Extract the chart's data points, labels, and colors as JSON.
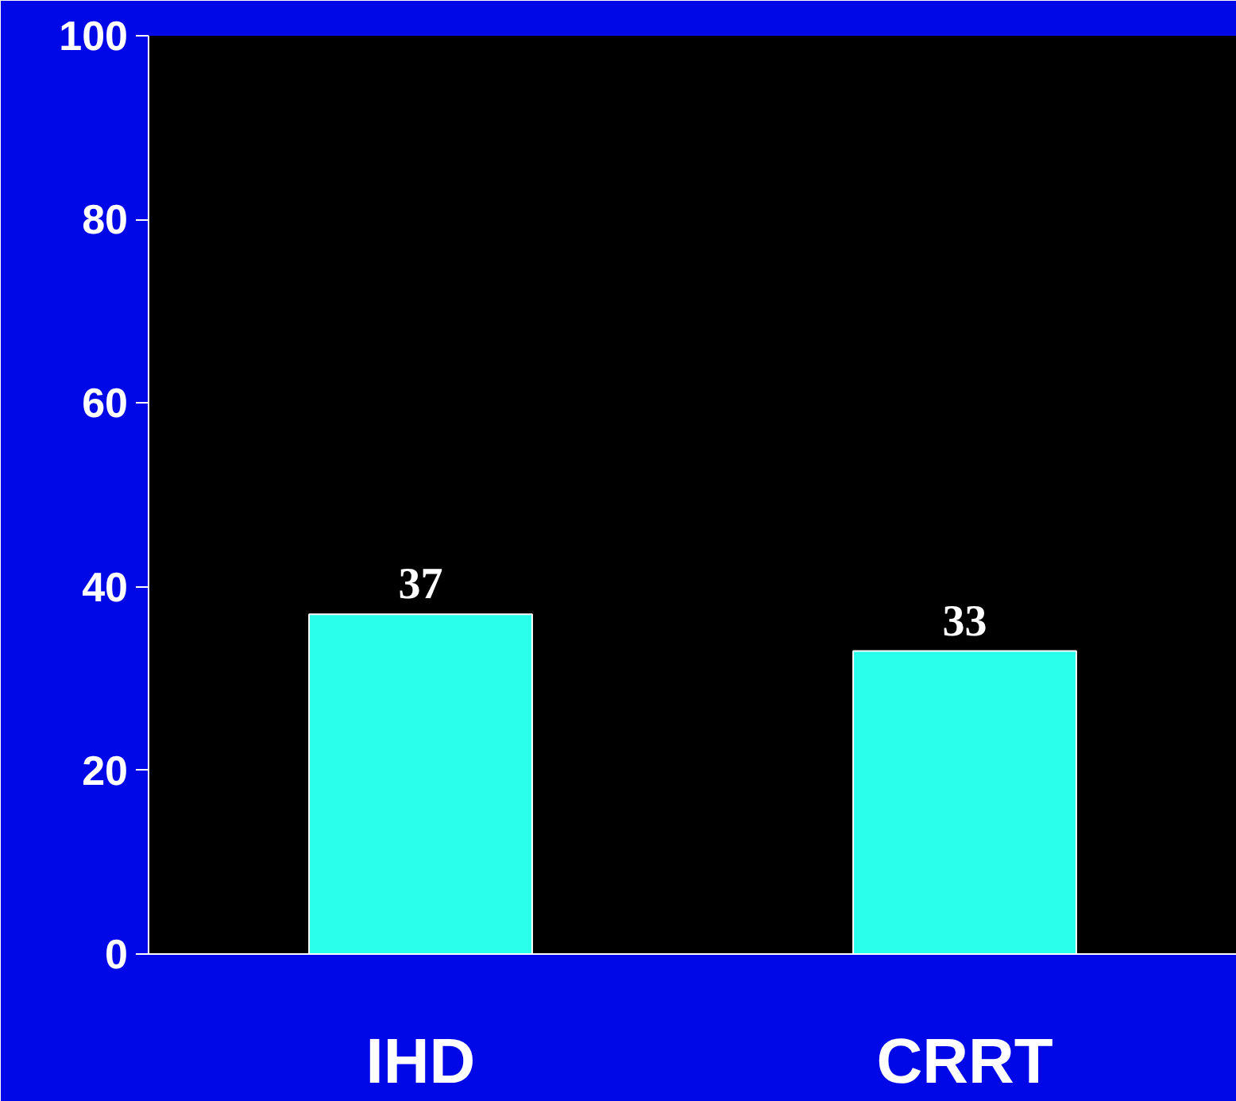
{
  "chart_data": {
    "type": "bar",
    "categories": [
      "IHD",
      "CRRT"
    ],
    "values": [
      37,
      33
    ],
    "color": "#29ffeb",
    "ylim": [
      0,
      100
    ],
    "yticks": [
      0,
      20,
      40,
      60,
      80,
      100
    ],
    "grid": false,
    "data_labels": true
  }
}
